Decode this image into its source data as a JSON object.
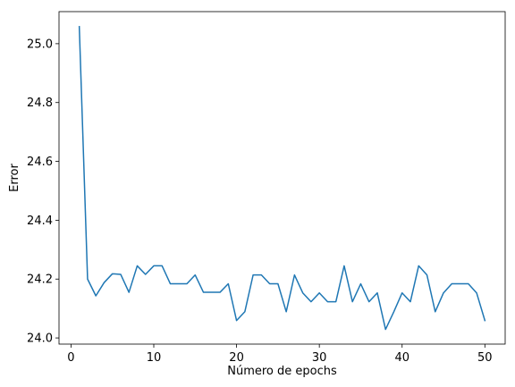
{
  "chart_data": {
    "type": "line",
    "title": "",
    "xlabel": "Número de epochs",
    "ylabel": "Error",
    "xlim": [
      -1.45,
      52.45
    ],
    "ylim": [
      23.979,
      25.109
    ],
    "grid": false,
    "legend": "none",
    "x_ticks": [
      0,
      10,
      20,
      30,
      40,
      50
    ],
    "y_ticks": [
      24.0,
      24.2,
      24.4,
      24.6,
      24.8,
      25.0
    ],
    "y_tick_labels": [
      "24.0",
      "24.2",
      "24.4",
      "24.6",
      "24.8",
      "25.0"
    ],
    "line_color": "#1f77b4",
    "series": [
      {
        "x": [
          1,
          2,
          3,
          4,
          5,
          6,
          7,
          8,
          9,
          10,
          11,
          12,
          13,
          14,
          15,
          16,
          17,
          18,
          19,
          20,
          21,
          22,
          23,
          24,
          25,
          26,
          27,
          28,
          29,
          30,
          31,
          32,
          33,
          34,
          35,
          36,
          37,
          38,
          39,
          40,
          41,
          42,
          43,
          44,
          45,
          46,
          47,
          48,
          49,
          50
        ],
        "values": [
          25.058,
          24.2,
          24.143,
          24.188,
          24.218,
          24.216,
          24.155,
          24.245,
          24.216,
          24.245,
          24.245,
          24.184,
          24.184,
          24.184,
          24.214,
          24.155,
          24.155,
          24.155,
          24.184,
          24.059,
          24.089,
          24.214,
          24.214,
          24.184,
          24.184,
          24.089,
          24.214,
          24.153,
          24.123,
          24.153,
          24.123,
          24.123,
          24.245,
          24.123,
          24.184,
          24.123,
          24.153,
          24.029,
          24.089,
          24.153,
          24.123,
          24.245,
          24.214,
          24.089,
          24.153,
          24.184,
          24.184,
          24.184,
          24.153,
          24.059
        ]
      }
    ]
  }
}
